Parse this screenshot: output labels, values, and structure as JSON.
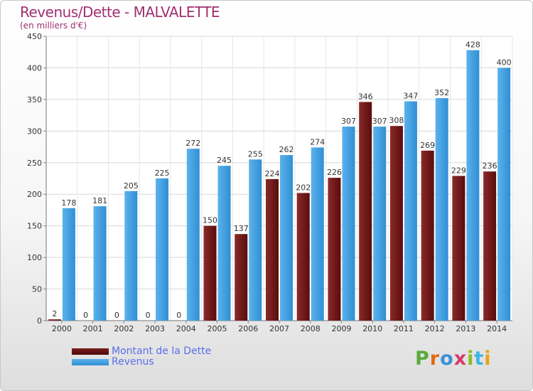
{
  "chart_data": {
    "type": "bar",
    "title": "Revenus/Dette - MALVALETTE",
    "subtitle": "(en milliers d'€)",
    "categories": [
      "2000",
      "2001",
      "2002",
      "2003",
      "2004",
      "2005",
      "2006",
      "2007",
      "2008",
      "2009",
      "2010",
      "2011",
      "2012",
      "2013",
      "2014"
    ],
    "series": [
      {
        "name": "Montant de la Dette",
        "color": "#6e1a1a",
        "values": [
          2,
          0,
          0,
          0,
          0,
          150,
          137,
          224,
          202,
          226,
          346,
          308,
          269,
          229,
          236
        ]
      },
      {
        "name": "Revenus",
        "color": "#3d9ee0",
        "values": [
          178,
          181,
          205,
          225,
          272,
          245,
          255,
          262,
          274,
          307,
          307,
          347,
          352,
          428,
          400
        ]
      }
    ],
    "ylim": [
      0,
      450
    ],
    "yticks": [
      "0",
      "50",
      "100",
      "150",
      "200",
      "250",
      "300",
      "350",
      "400",
      "450"
    ],
    "grid": true,
    "legend_position": "bottom-left"
  },
  "logo": {
    "letters": [
      "P",
      "r",
      "o",
      "x",
      "i",
      "t",
      "i"
    ],
    "colors": [
      "#5aaa3c",
      "#e06a14",
      "#3c8fd6",
      "#d63a6a",
      "#8cbc28",
      "#3cb6e0",
      "#e8a414"
    ]
  }
}
